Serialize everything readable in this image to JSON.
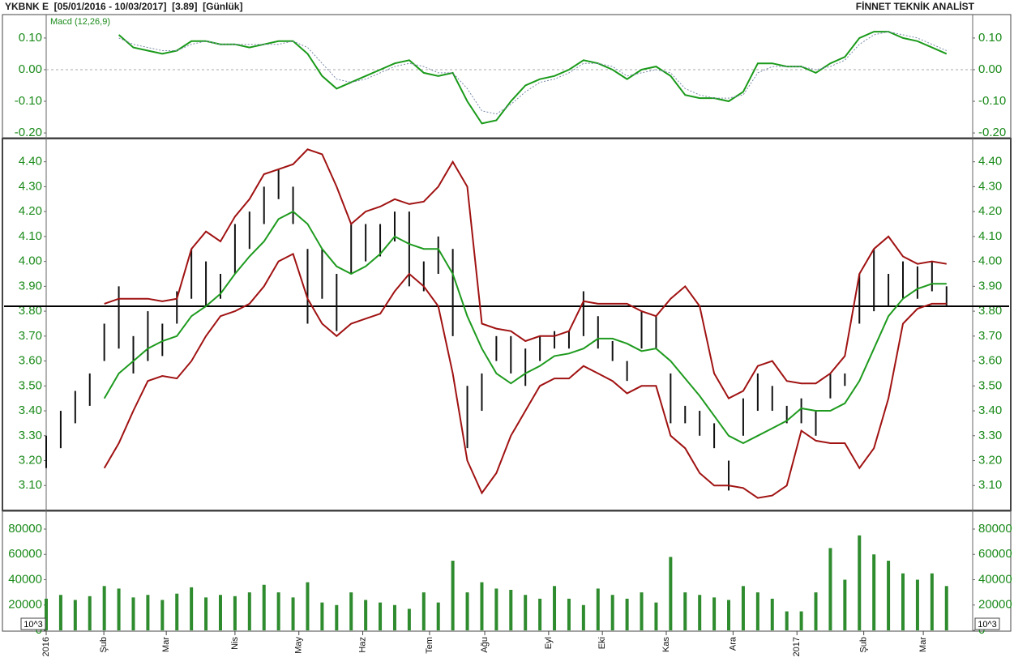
{
  "header": {
    "title": "YKBNK E  [05/01/2016 - 10/03/2017]  [3.89]  [Günlük]",
    "vendor": "FİNNET TEKNİK ANALİST"
  },
  "chart_data": [
    {
      "type": "line",
      "title": "Macd (12,26,9)",
      "x": [
        0,
        1,
        2,
        3,
        4,
        5,
        6,
        7,
        8,
        9,
        10,
        11,
        12,
        13,
        14,
        15,
        16,
        17,
        18,
        19,
        20,
        21,
        22,
        23,
        24,
        25,
        26,
        27,
        28,
        29,
        30,
        31,
        32,
        33,
        34,
        35,
        36,
        37,
        38,
        39,
        40,
        41,
        42,
        43,
        44,
        45,
        46,
        47,
        48,
        49,
        50,
        51,
        52,
        53,
        54,
        55,
        56,
        57,
        58,
        59,
        60,
        61,
        62
      ],
      "xlim": [
        0,
        63.8
      ],
      "ylim": [
        -0.21,
        0.174
      ],
      "yticks": [
        {
          "value": -0.2,
          "label": "-0.20"
        },
        {
          "value": -0.1,
          "label": "-0.10"
        },
        {
          "value": 0,
          "label": "0.00"
        },
        {
          "value": 0.1,
          "label": "0.10"
        }
      ],
      "reference_line": 0,
      "series": [
        {
          "color": "#1a9a1a",
          "style": "solid",
          "values": [
            null,
            null,
            null,
            null,
            null,
            0.11,
            0.07,
            0.06,
            0.05,
            0.06,
            0.09,
            0.09,
            0.08,
            0.08,
            0.07,
            0.08,
            0.09,
            0.09,
            0.05,
            -0.02,
            -0.06,
            -0.04,
            -0.02,
            0.0,
            0.02,
            0.03,
            -0.01,
            -0.02,
            -0.01,
            -0.1,
            -0.17,
            -0.16,
            -0.1,
            -0.05,
            -0.03,
            -0.02,
            0.0,
            0.03,
            0.02,
            0.0,
            -0.03,
            0.0,
            0.01,
            -0.02,
            -0.08,
            -0.09,
            -0.09,
            -0.1,
            -0.07,
            0.02,
            0.02,
            0.01,
            0.01,
            -0.01,
            0.02,
            0.04,
            0.1,
            0.12,
            0.12,
            0.1,
            0.09,
            0.07,
            0.05
          ]
        },
        {
          "color": "#7a8aa8",
          "style": "dotted",
          "values": [
            null,
            null,
            null,
            null,
            null,
            0.1,
            0.08,
            0.07,
            0.06,
            0.06,
            0.08,
            0.09,
            0.08,
            0.08,
            0.08,
            0.08,
            0.08,
            0.09,
            0.07,
            0.02,
            -0.03,
            -0.04,
            -0.03,
            -0.01,
            0.01,
            0.02,
            0.01,
            -0.01,
            -0.01,
            -0.06,
            -0.13,
            -0.14,
            -0.11,
            -0.07,
            -0.04,
            -0.03,
            -0.01,
            0.02,
            0.02,
            0.01,
            -0.02,
            -0.01,
            0.0,
            -0.01,
            -0.06,
            -0.08,
            -0.09,
            -0.09,
            -0.08,
            -0.01,
            0.01,
            0.01,
            0.01,
            0.0,
            0.01,
            0.03,
            0.08,
            0.11,
            0.12,
            0.11,
            0.1,
            0.08,
            0.06
          ]
        }
      ]
    },
    {
      "type": "range",
      "x": [
        0,
        1,
        2,
        3,
        4,
        5,
        6,
        7,
        8,
        9,
        10,
        11,
        12,
        13,
        14,
        15,
        16,
        17,
        18,
        19,
        20,
        21,
        22,
        23,
        24,
        25,
        26,
        27,
        28,
        29,
        30,
        31,
        32,
        33,
        34,
        35,
        36,
        37,
        38,
        39,
        40,
        41,
        42,
        43,
        44,
        45,
        46,
        47,
        48,
        49,
        50,
        51,
        52,
        53,
        54,
        55,
        56,
        57,
        58,
        59,
        60,
        61,
        62
      ],
      "xlim": [
        0,
        63.8
      ],
      "ylim": [
        3.0,
        4.49
      ],
      "yticks": [
        {
          "value": 3.1,
          "label": "3.10"
        },
        {
          "value": 3.2,
          "label": "3.20"
        },
        {
          "value": 3.3,
          "label": "3.30"
        },
        {
          "value": 3.4,
          "label": "3.40"
        },
        {
          "value": 3.5,
          "label": "3.50"
        },
        {
          "value": 3.6,
          "label": "3.60"
        },
        {
          "value": 3.7,
          "label": "3.70"
        },
        {
          "value": 3.8,
          "label": "3.80"
        },
        {
          "value": 3.9,
          "label": "3.90"
        },
        {
          "value": 4.0,
          "label": "4.00"
        },
        {
          "value": 4.1,
          "label": "4.10"
        },
        {
          "value": 4.2,
          "label": "4.20"
        },
        {
          "value": 4.3,
          "label": "4.30"
        },
        {
          "value": 4.4,
          "label": "4.40"
        }
      ],
      "reference_line": 3.82,
      "bar_color": "#111111",
      "high": [
        3.3,
        3.4,
        3.48,
        3.55,
        3.75,
        3.9,
        3.7,
        3.8,
        3.75,
        3.88,
        4.05,
        4.0,
        3.95,
        4.15,
        4.2,
        4.3,
        4.37,
        4.3,
        4.05,
        4.05,
        3.95,
        4.15,
        4.15,
        4.15,
        4.2,
        4.2,
        4.0,
        4.1,
        4.05,
        3.5,
        3.55,
        3.7,
        3.7,
        3.65,
        3.7,
        3.72,
        3.72,
        3.88,
        3.78,
        3.68,
        3.6,
        3.8,
        3.78,
        3.55,
        3.42,
        3.4,
        3.35,
        3.2,
        3.45,
        3.55,
        3.5,
        3.42,
        3.45,
        3.4,
        3.55,
        3.55,
        3.95,
        4.05,
        3.95,
        4.0,
        3.98,
        4.0,
        3.9
      ],
      "low": [
        3.17,
        3.25,
        3.35,
        3.42,
        3.6,
        3.65,
        3.55,
        3.6,
        3.62,
        3.75,
        3.85,
        3.82,
        3.85,
        3.95,
        4.05,
        4.15,
        4.25,
        4.15,
        3.75,
        3.85,
        3.72,
        3.95,
        4.0,
        4.02,
        4.08,
        3.9,
        3.88,
        3.95,
        3.7,
        3.25,
        3.4,
        3.6,
        3.55,
        3.5,
        3.6,
        3.65,
        3.65,
        3.7,
        3.65,
        3.6,
        3.52,
        3.65,
        3.65,
        3.35,
        3.35,
        3.3,
        3.25,
        3.08,
        3.3,
        3.4,
        3.4,
        3.35,
        3.35,
        3.3,
        3.45,
        3.5,
        3.75,
        3.8,
        3.82,
        3.85,
        3.85,
        3.88,
        3.82
      ],
      "series": [
        {
          "color": "#1e9a1e",
          "values": [
            null,
            null,
            null,
            null,
            3.45,
            3.55,
            3.6,
            3.65,
            3.68,
            3.7,
            3.78,
            3.82,
            3.87,
            3.95,
            4.02,
            4.08,
            4.17,
            4.2,
            4.15,
            4.05,
            3.98,
            3.95,
            3.98,
            4.03,
            4.1,
            4.07,
            4.05,
            4.05,
            3.95,
            3.78,
            3.65,
            3.55,
            3.51,
            3.55,
            3.58,
            3.62,
            3.63,
            3.65,
            3.69,
            3.69,
            3.67,
            3.64,
            3.65,
            3.6,
            3.53,
            3.46,
            3.38,
            3.3,
            3.27,
            3.3,
            3.33,
            3.36,
            3.41,
            3.4,
            3.4,
            3.43,
            3.52,
            3.65,
            3.78,
            3.85,
            3.89,
            3.91,
            3.91
          ]
        },
        {
          "color": "#a01212",
          "values": [
            null,
            null,
            null,
            null,
            3.83,
            3.85,
            3.85,
            3.85,
            3.84,
            3.85,
            4.05,
            4.12,
            4.08,
            4.18,
            4.25,
            4.35,
            4.37,
            4.39,
            4.45,
            4.43,
            4.3,
            4.15,
            4.2,
            4.22,
            4.25,
            4.23,
            4.24,
            4.3,
            4.4,
            4.3,
            3.75,
            3.73,
            3.72,
            3.68,
            3.7,
            3.7,
            3.72,
            3.84,
            3.83,
            3.83,
            3.83,
            3.8,
            3.78,
            3.85,
            3.9,
            3.82,
            3.55,
            3.45,
            3.48,
            3.58,
            3.6,
            3.52,
            3.51,
            3.51,
            3.55,
            3.62,
            3.95,
            4.05,
            4.1,
            4.02,
            3.99,
            4.0,
            3.99
          ]
        },
        {
          "color": "#a01212",
          "values": [
            null,
            null,
            null,
            null,
            3.17,
            3.27,
            3.4,
            3.52,
            3.54,
            3.53,
            3.6,
            3.7,
            3.78,
            3.8,
            3.83,
            3.9,
            4.0,
            4.03,
            3.85,
            3.75,
            3.7,
            3.75,
            3.77,
            3.79,
            3.88,
            3.95,
            3.9,
            3.82,
            3.55,
            3.2,
            3.07,
            3.15,
            3.3,
            3.4,
            3.5,
            3.53,
            3.53,
            3.58,
            3.55,
            3.52,
            3.47,
            3.5,
            3.5,
            3.3,
            3.25,
            3.15,
            3.1,
            3.1,
            3.09,
            3.05,
            3.06,
            3.1,
            3.32,
            3.28,
            3.27,
            3.27,
            3.17,
            3.25,
            3.45,
            3.75,
            3.81,
            3.83,
            3.83
          ]
        }
      ]
    },
    {
      "type": "bar",
      "color": "#2e8b2e",
      "multiplier_label": "10^3",
      "x": [
        0,
        1,
        2,
        3,
        4,
        5,
        6,
        7,
        8,
        9,
        10,
        11,
        12,
        13,
        14,
        15,
        16,
        17,
        18,
        19,
        20,
        21,
        22,
        23,
        24,
        25,
        26,
        27,
        28,
        29,
        30,
        31,
        32,
        33,
        34,
        35,
        36,
        37,
        38,
        39,
        40,
        41,
        42,
        43,
        44,
        45,
        46,
        47,
        48,
        49,
        50,
        51,
        52,
        53,
        54,
        55,
        56,
        57,
        58,
        59,
        60,
        61,
        62
      ],
      "xlim": [
        0,
        63.8
      ],
      "ylim": [
        0,
        92800
      ],
      "yticks": [
        0,
        20000,
        40000,
        60000,
        80000
      ],
      "xticks": [
        {
          "value": 0,
          "label": "2016"
        },
        {
          "value": 3.97,
          "label": "Şub"
        },
        {
          "value": 8.27,
          "label": "Mar"
        },
        {
          "value": 13.0,
          "label": "Nis"
        },
        {
          "value": 17.4,
          "label": "May"
        },
        {
          "value": 21.8,
          "label": "Haz"
        },
        {
          "value": 26.4,
          "label": "Tem"
        },
        {
          "value": 30.2,
          "label": "Ağu"
        },
        {
          "value": 34.6,
          "label": "Eyl"
        },
        {
          "value": 38.3,
          "label": "Eki"
        },
        {
          "value": 42.7,
          "label": "Kas"
        },
        {
          "value": 47.3,
          "label": "Ara"
        },
        {
          "value": 51.7,
          "label": "2017"
        },
        {
          "value": 56.3,
          "label": "Şub"
        },
        {
          "value": 60.4,
          "label": "Mar"
        }
      ],
      "values": [
        25000,
        28000,
        24000,
        27000,
        35000,
        33000,
        26000,
        28000,
        24000,
        29000,
        34000,
        26000,
        28000,
        27000,
        30000,
        36000,
        30000,
        26000,
        38000,
        22000,
        20000,
        30000,
        24000,
        22000,
        20000,
        17000,
        30000,
        22000,
        55000,
        30000,
        38000,
        33000,
        32000,
        28000,
        25000,
        35000,
        25000,
        20000,
        33000,
        28000,
        25000,
        30000,
        22000,
        58000,
        30000,
        28000,
        26000,
        24000,
        35000,
        30000,
        25000,
        15000,
        15000,
        30000,
        65000,
        40000,
        75000,
        60000,
        55000,
        45000,
        40000,
        45000,
        35000
      ]
    }
  ]
}
